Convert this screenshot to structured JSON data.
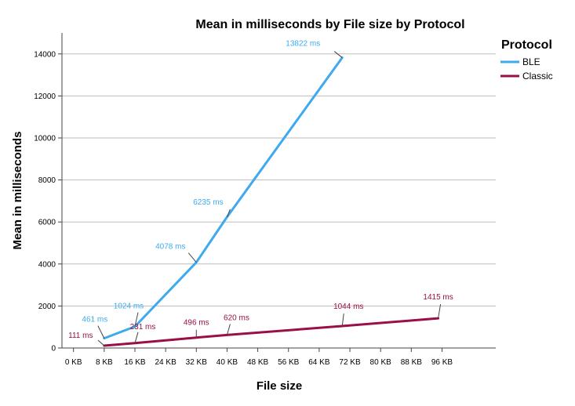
{
  "chart_data": {
    "type": "line",
    "title": "Mean in milliseconds by File size by Protocol",
    "xlabel": "File size",
    "ylabel": "Mean in milliseconds",
    "x_unit": "KB",
    "xlim": [
      -3,
      110
    ],
    "xticks": [
      0,
      8,
      16,
      24,
      32,
      40,
      48,
      56,
      64,
      72,
      80,
      88,
      96
    ],
    "xtick_labels": [
      "0 KB",
      "8 KB",
      "16 KB",
      "24 KB",
      "32 KB",
      "40 KB",
      "48 KB",
      "56 KB",
      "64 KB",
      "72 KB",
      "80 KB",
      "88 KB",
      "96 KB"
    ],
    "ylim": [
      0,
      15000
    ],
    "yticks": [
      0,
      2000,
      4000,
      6000,
      8000,
      10000,
      12000,
      14000
    ],
    "grid": true,
    "legend": {
      "title": "Protocol",
      "position": "right"
    },
    "series": [
      {
        "name": "BLE",
        "color": "#3daaf0",
        "points": [
          {
            "x": 8,
            "y": 461,
            "label": "461 ms"
          },
          {
            "x": 16,
            "y": 1024,
            "label": "1024 ms"
          },
          {
            "x": 32,
            "y": 4078,
            "label": "4078 ms"
          },
          {
            "x": 40,
            "y": 6235,
            "label": "6235 ms"
          },
          {
            "x": 70,
            "y": 13822,
            "label": "13822 ms"
          }
        ]
      },
      {
        "name": "Classic",
        "color": "#990f46",
        "points": [
          {
            "x": 8,
            "y": 111,
            "label": "111 ms"
          },
          {
            "x": 16,
            "y": 231,
            "label": "231 ms"
          },
          {
            "x": 32,
            "y": 496,
            "label": "496 ms"
          },
          {
            "x": 40,
            "y": 620,
            "label": "620 ms"
          },
          {
            "x": 70,
            "y": 1044,
            "label": "1044 ms"
          },
          {
            "x": 95,
            "y": 1415,
            "label": "1415 ms"
          }
        ]
      }
    ]
  }
}
